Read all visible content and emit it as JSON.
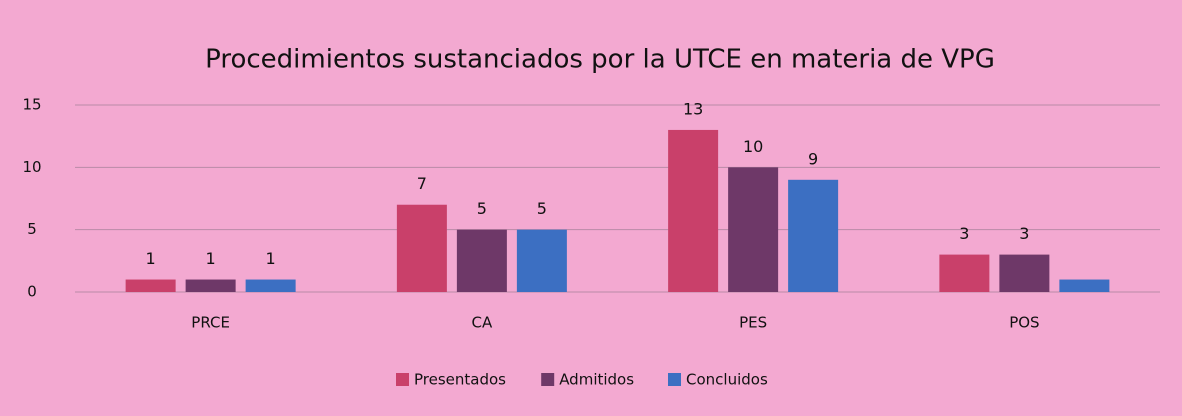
{
  "chart_data": {
    "type": "bar",
    "title": "Procedimientos sustanciados por la UTCE en materia de VPG",
    "categories": [
      "PRCE",
      "CA",
      "PES",
      "POS"
    ],
    "series": [
      {
        "name": "Presentados",
        "color": "#c9406a",
        "values": [
          1,
          7,
          13,
          3
        ]
      },
      {
        "name": "Admitidos",
        "color": "#6e3868",
        "values": [
          1,
          5,
          10,
          3
        ]
      },
      {
        "name": "Concluidos",
        "color": "#3c6fc2",
        "values": [
          1,
          5,
          9,
          1
        ],
        "value_labels": [
          1,
          5,
          9,
          null
        ]
      }
    ],
    "ylim": [
      0,
      15
    ],
    "yticks": [
      0,
      5,
      10,
      15
    ],
    "grid": true,
    "legend": "bottom"
  }
}
